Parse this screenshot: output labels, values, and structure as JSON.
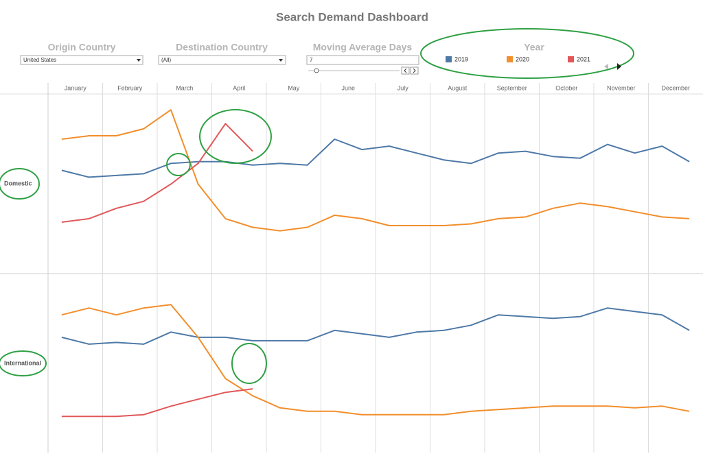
{
  "header": {
    "title": "Search Demand Dashboard"
  },
  "filters": [
    {
      "title": "Origin Country",
      "value": "United States"
    },
    {
      "title": "Destination Country",
      "value": "(All)"
    },
    {
      "title": "Moving Average Days",
      "value": "7"
    }
  ],
  "chart_data": {
    "type": "line",
    "legend_title": "Year",
    "categories": [
      "January",
      null,
      "February",
      null,
      "March",
      null,
      "April",
      null,
      "May",
      null,
      "June",
      null,
      "July",
      null,
      "August",
      null,
      "September",
      null,
      "October",
      null,
      "November",
      null,
      "December",
      null
    ],
    "facets": [
      "Domestic",
      "International"
    ],
    "ylim": [
      0,
      100
    ],
    "series": [
      {
        "name": "2019",
        "color": "#4e79a7",
        "values": [
          [
            57,
            53,
            54,
            55,
            61,
            62,
            62,
            60,
            61,
            60,
            75,
            69,
            71,
            67,
            63,
            61,
            67,
            68,
            65,
            64,
            72,
            67,
            71,
            62
          ],
          [
            65,
            61,
            62,
            61,
            68,
            65,
            65,
            63,
            63,
            63,
            69,
            67,
            65,
            68,
            69,
            72,
            78,
            77,
            76,
            77,
            82,
            80,
            78,
            69
          ]
        ]
      },
      {
        "name": "2020",
        "color": "#f28e2b",
        "values": [
          [
            75,
            77,
            77,
            81,
            92,
            49,
            29,
            24,
            22,
            24,
            31,
            29,
            25,
            25,
            25,
            26,
            29,
            30,
            35,
            38,
            36,
            33,
            30,
            29
          ],
          [
            78,
            82,
            78,
            82,
            84,
            65,
            41,
            31,
            24,
            22,
            22,
            20,
            20,
            20,
            20,
            22,
            23,
            24,
            25,
            25,
            25,
            24,
            25,
            22
          ]
        ]
      },
      {
        "name": "2021",
        "color": "#e15759",
        "values": [
          [
            27,
            29,
            35,
            39,
            49,
            61,
            84,
            68,
            null,
            null,
            null,
            null,
            null,
            null,
            null,
            null,
            null,
            null,
            null,
            null,
            null,
            null,
            null,
            null
          ],
          [
            19,
            19,
            19,
            20,
            25,
            29,
            33,
            35,
            null,
            null,
            null,
            null,
            null,
            null,
            null,
            null,
            null,
            null,
            null,
            null,
            null,
            null,
            null,
            null
          ]
        ]
      }
    ]
  }
}
